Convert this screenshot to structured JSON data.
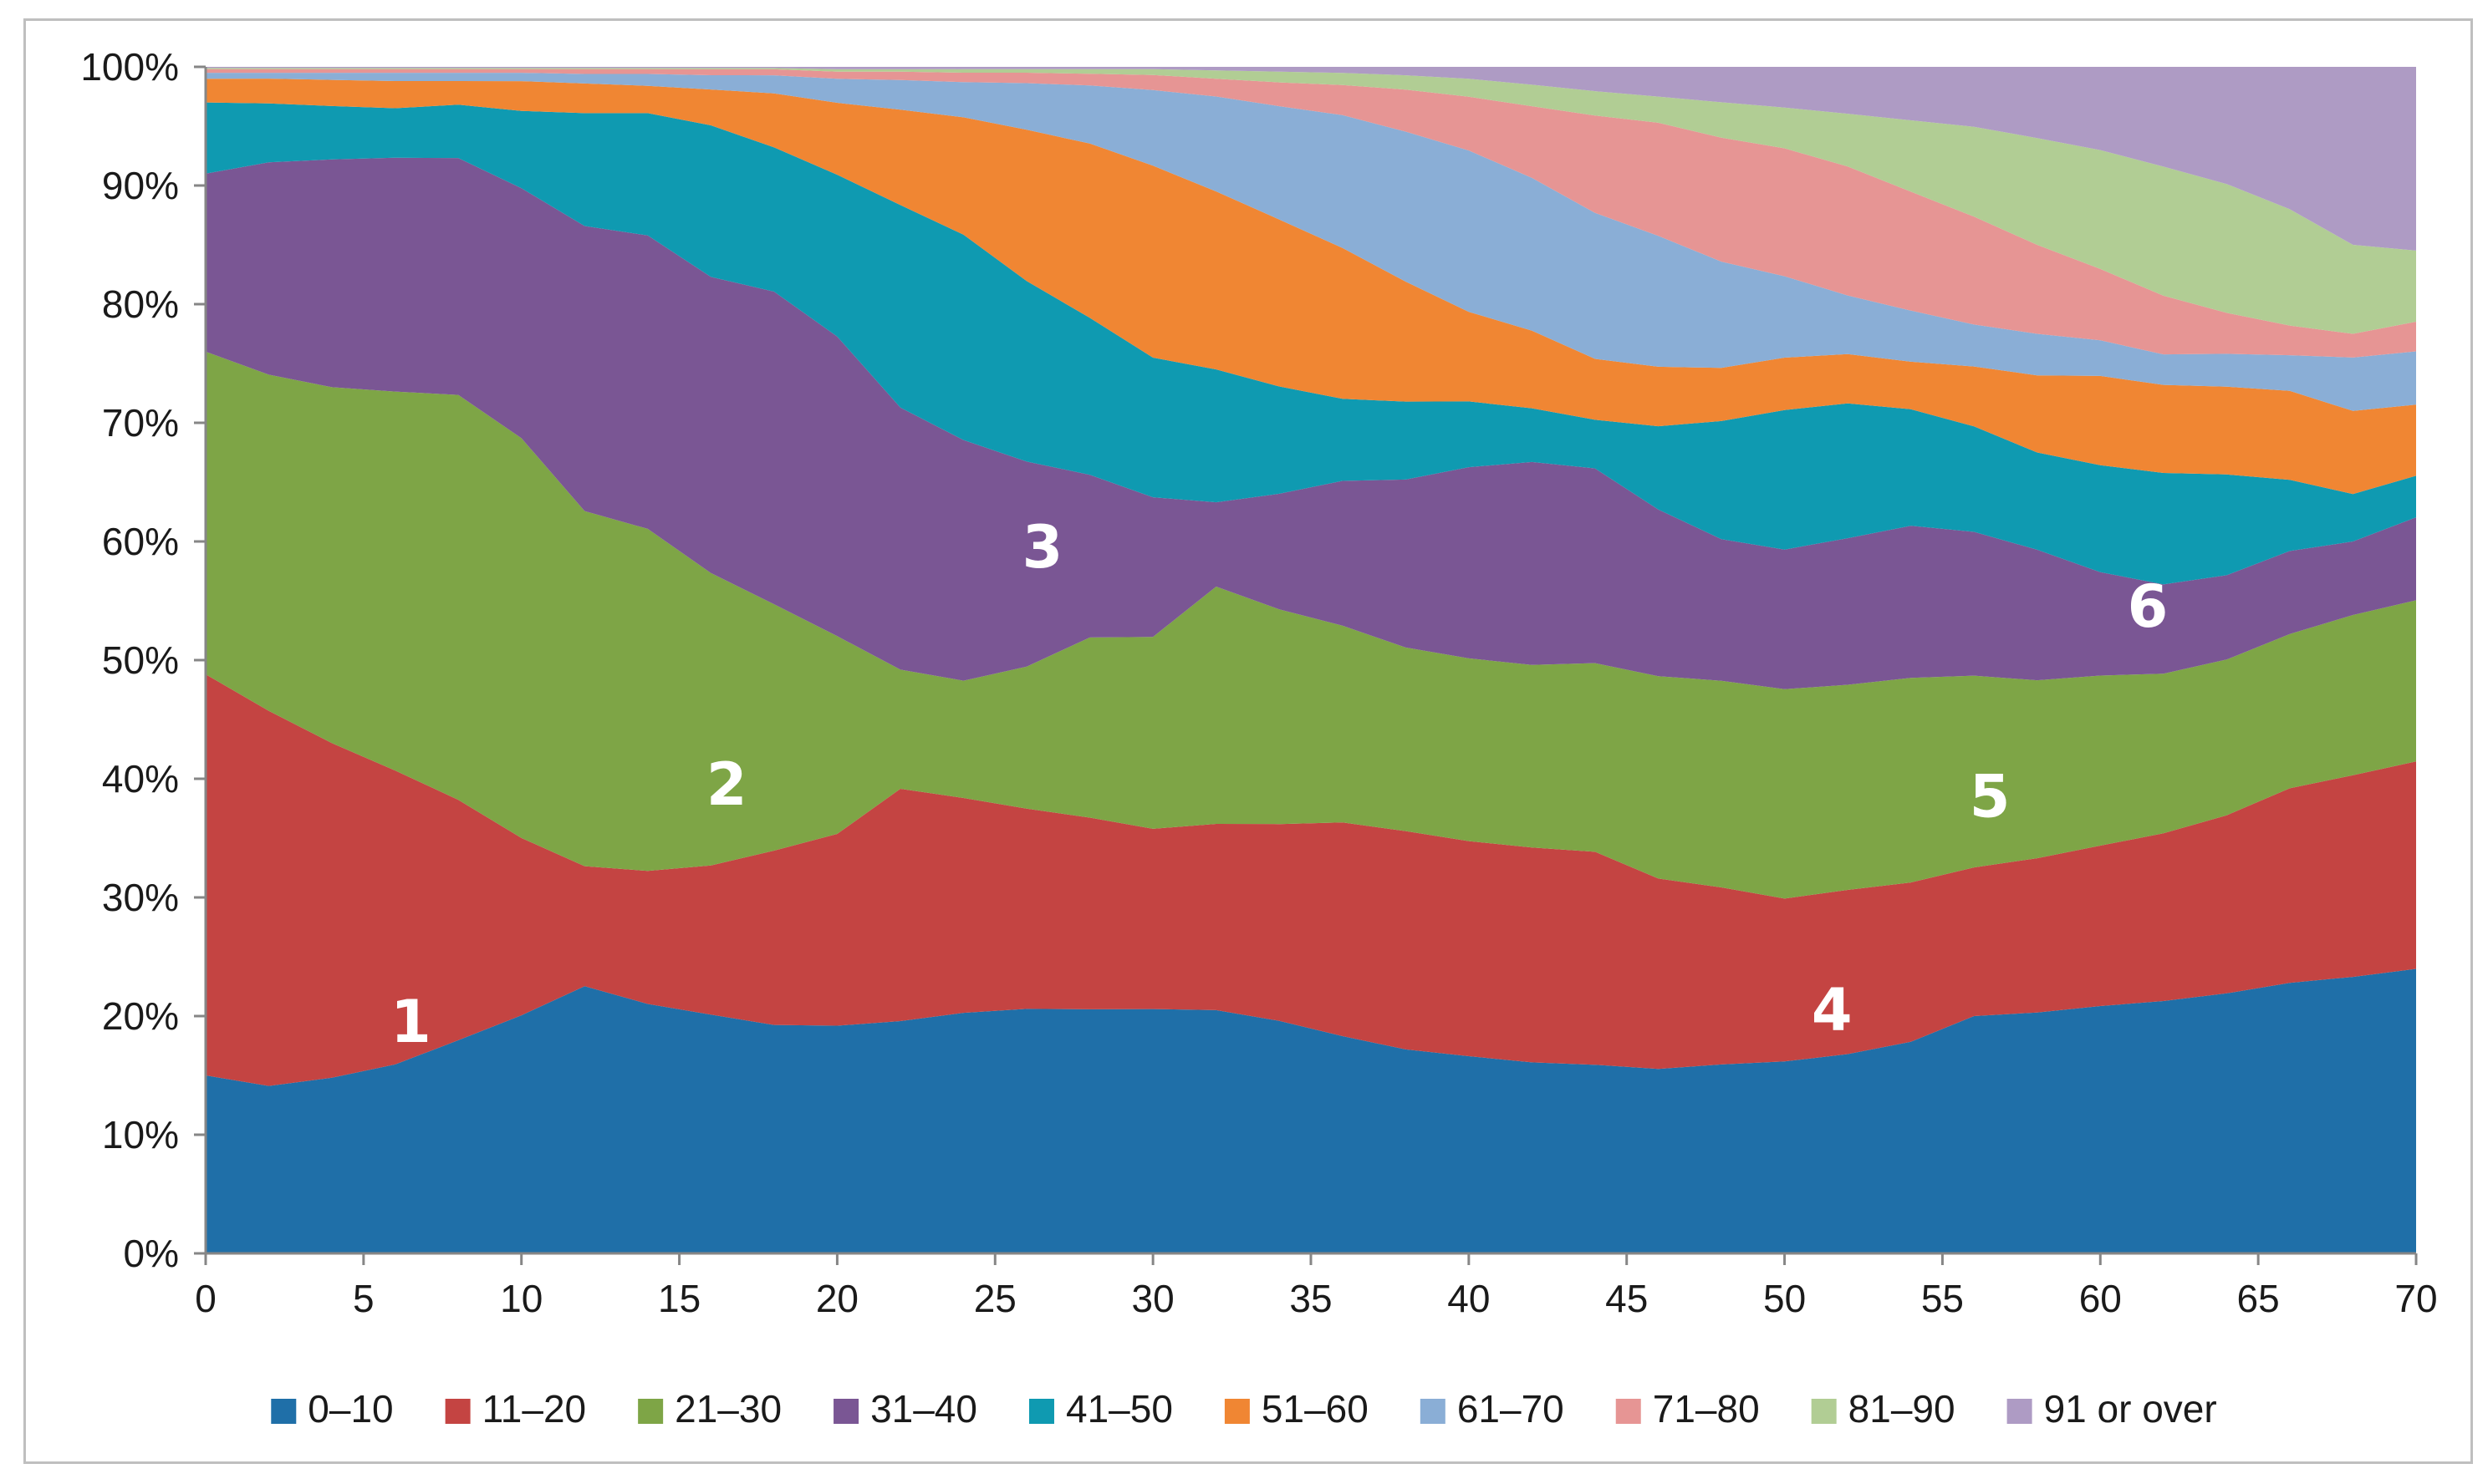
{
  "chart_data": {
    "type": "area",
    "stacked": "percent",
    "title": "",
    "xlabel": "",
    "ylabel": "",
    "xlim": [
      0,
      70
    ],
    "ylim": [
      0,
      100
    ],
    "grid": false,
    "legend_position": "bottom",
    "x": [
      0,
      2,
      4,
      6,
      8,
      10,
      12,
      14,
      16,
      18,
      20,
      22,
      24,
      26,
      28,
      30,
      32,
      34,
      36,
      38,
      40,
      42,
      44,
      46,
      48,
      50,
      52,
      54,
      56,
      58,
      60,
      62,
      64,
      66,
      68,
      70
    ],
    "x_ticks": [
      0,
      5,
      10,
      15,
      20,
      25,
      30,
      35,
      40,
      45,
      50,
      55,
      60,
      65,
      70
    ],
    "x_tick_labels": [
      "0",
      "5",
      "10",
      "15",
      "20",
      "25",
      "30",
      "35",
      "40",
      "45",
      "50",
      "55",
      "60",
      "65",
      "70"
    ],
    "y_ticks": [
      0,
      10,
      20,
      30,
      40,
      50,
      60,
      70,
      80,
      90,
      100
    ],
    "y_tick_labels": [
      "0%",
      "10%",
      "20%",
      "30%",
      "40%",
      "50%",
      "60%",
      "70%",
      "80%",
      "90%",
      "100%"
    ],
    "series": [
      {
        "name": "0–10",
        "color": "#1f6fa8",
        "values": [
          15.0,
          14.2,
          14.8,
          16.0,
          18.0,
          20.0,
          22.5,
          21.0,
          20.0,
          19.0,
          19.0,
          19.5,
          20.5,
          21.0,
          21.0,
          21.0,
          20.5,
          19.5,
          18.0,
          17.0,
          16.5,
          16.0,
          15.5,
          15.5,
          16.0,
          16.5,
          17.0,
          17.8,
          19.8,
          20.3,
          20.8,
          21.5,
          22.2,
          22.8,
          23.3,
          24.0
        ]
      },
      {
        "name": "11–20",
        "color": "#c44442",
        "values": [
          33.8,
          31.8,
          28.2,
          24.9,
          20.3,
          14.9,
          10.1,
          11.2,
          12.5,
          14.5,
          16.0,
          19.5,
          18.3,
          17.2,
          16.5,
          15.5,
          15.7,
          16.5,
          17.7,
          18.2,
          18.0,
          18.0,
          17.5,
          16.0,
          15.0,
          14.0,
          14.0,
          13.4,
          12.4,
          13.0,
          13.5,
          14.3,
          15.2,
          16.4,
          17.0,
          17.5
        ]
      },
      {
        "name": "21–30",
        "color": "#7ea546",
        "values": [
          27.2,
          28.5,
          30.0,
          32.1,
          34.2,
          33.6,
          29.9,
          28.8,
          24.5,
          20.5,
          16.5,
          10.0,
          10.0,
          12.2,
          15.5,
          16.5,
          20.0,
          18.0,
          16.3,
          15.3,
          15.3,
          15.3,
          15.5,
          17.0,
          17.5,
          18.0,
          17.5,
          17.2,
          16.0,
          15.0,
          14.3,
          13.6,
          13.3,
          13.0,
          13.5,
          13.6
        ]
      },
      {
        "name": "31–40",
        "color": "#7a5694",
        "values": [
          15.0,
          18.0,
          19.2,
          19.8,
          20.0,
          21.0,
          24.0,
          24.7,
          24.8,
          26.0,
          25.0,
          22.0,
          20.5,
          17.6,
          14.0,
          12.0,
          7.1,
          9.7,
          12.0,
          14.0,
          16.0,
          17.0,
          16.0,
          14.0,
          12.0,
          12.0,
          12.5,
          12.8,
          12.0,
          11.0,
          8.7,
          7.6,
          7.2,
          7.0,
          6.2,
          7.0
        ]
      },
      {
        "name": "41–50",
        "color": "#0f9ab1",
        "values": [
          6.0,
          5.0,
          4.5,
          4.2,
          4.5,
          6.5,
          9.5,
          10.3,
          12.7,
          12.0,
          13.5,
          17.0,
          17.5,
          15.5,
          13.5,
          12.0,
          11.2,
          9.0,
          6.8,
          6.5,
          5.5,
          4.5,
          4.0,
          7.0,
          10.0,
          12.0,
          11.5,
          9.8,
          8.8,
          8.2,
          9.0,
          9.5,
          8.6,
          6.0,
          4.0,
          3.5
        ]
      },
      {
        "name": "51–60",
        "color": "#f08633",
        "values": [
          2.0,
          2.1,
          2.2,
          2.3,
          2.0,
          2.5,
          2.5,
          2.3,
          3.0,
          4.5,
          6.0,
          8.0,
          10.0,
          13.0,
          15.0,
          16.5,
          15.0,
          14.0,
          12.5,
          10.0,
          7.5,
          6.5,
          5.0,
          5.0,
          4.5,
          4.5,
          4.2,
          4.0,
          5.0,
          6.5,
          7.5,
          7.5,
          7.5,
          7.5,
          7.0,
          6.0
        ]
      },
      {
        "name": "61–70",
        "color": "#8aaed6",
        "values": [
          0.5,
          0.5,
          0.6,
          0.7,
          0.7,
          0.7,
          0.8,
          1.0,
          1.2,
          1.5,
          2.0,
          2.5,
          3.0,
          4.0,
          5.0,
          6.5,
          8.0,
          9.5,
          11.0,
          12.5,
          13.5,
          12.8,
          12.0,
          11.0,
          9.0,
          7.0,
          5.0,
          4.3,
          3.5,
          3.5,
          3.0,
          2.6,
          2.8,
          3.0,
          4.5,
          4.5
        ]
      },
      {
        "name": "71–80",
        "color": "#e69594",
        "values": [
          0.3,
          0.3,
          0.3,
          0.3,
          0.3,
          0.3,
          0.4,
          0.4,
          0.5,
          0.5,
          0.6,
          0.7,
          0.8,
          0.9,
          1.0,
          1.3,
          1.5,
          2.0,
          2.5,
          3.5,
          4.5,
          6.0,
          8.0,
          9.5,
          10.5,
          11.0,
          11.0,
          10.0,
          9.0,
          7.5,
          6.0,
          5.0,
          3.5,
          2.5,
          2.0,
          2.5
        ]
      },
      {
        "name": "81–90",
        "color": "#b1cd94",
        "values": [
          0.1,
          0.1,
          0.1,
          0.1,
          0.1,
          0.1,
          0.1,
          0.1,
          0.1,
          0.1,
          0.2,
          0.2,
          0.3,
          0.3,
          0.4,
          0.5,
          0.7,
          0.9,
          1.0,
          1.2,
          1.5,
          1.8,
          2.0,
          2.2,
          3.0,
          3.5,
          4.5,
          6.0,
          7.5,
          9.0,
          10.0,
          11.0,
          11.0,
          9.8,
          7.5,
          6.0
        ]
      },
      {
        "name": "91 or over",
        "color": "#ae9bc4",
        "values": [
          0.1,
          0.1,
          0.1,
          0.1,
          0.1,
          0.1,
          0.1,
          0.1,
          0.1,
          0.1,
          0.2,
          0.2,
          0.2,
          0.2,
          0.2,
          0.2,
          0.3,
          0.4,
          0.5,
          0.7,
          1.0,
          1.5,
          2.0,
          2.5,
          3.0,
          3.5,
          4.0,
          4.5,
          5.0,
          6.0,
          7.0,
          8.5,
          10.0,
          12.0,
          15.0,
          15.5
        ]
      }
    ],
    "annotations": [
      {
        "text": "1",
        "x": 6.5,
        "y": 19.5
      },
      {
        "text": "2",
        "x": 16.5,
        "y": 39.5
      },
      {
        "text": "3",
        "x": 26.5,
        "y": 59.5
      },
      {
        "text": "4",
        "x": 51.5,
        "y": 20.5
      },
      {
        "text": "5",
        "x": 56.5,
        "y": 38.5
      },
      {
        "text": "6",
        "x": 61.5,
        "y": 54.5
      }
    ]
  }
}
